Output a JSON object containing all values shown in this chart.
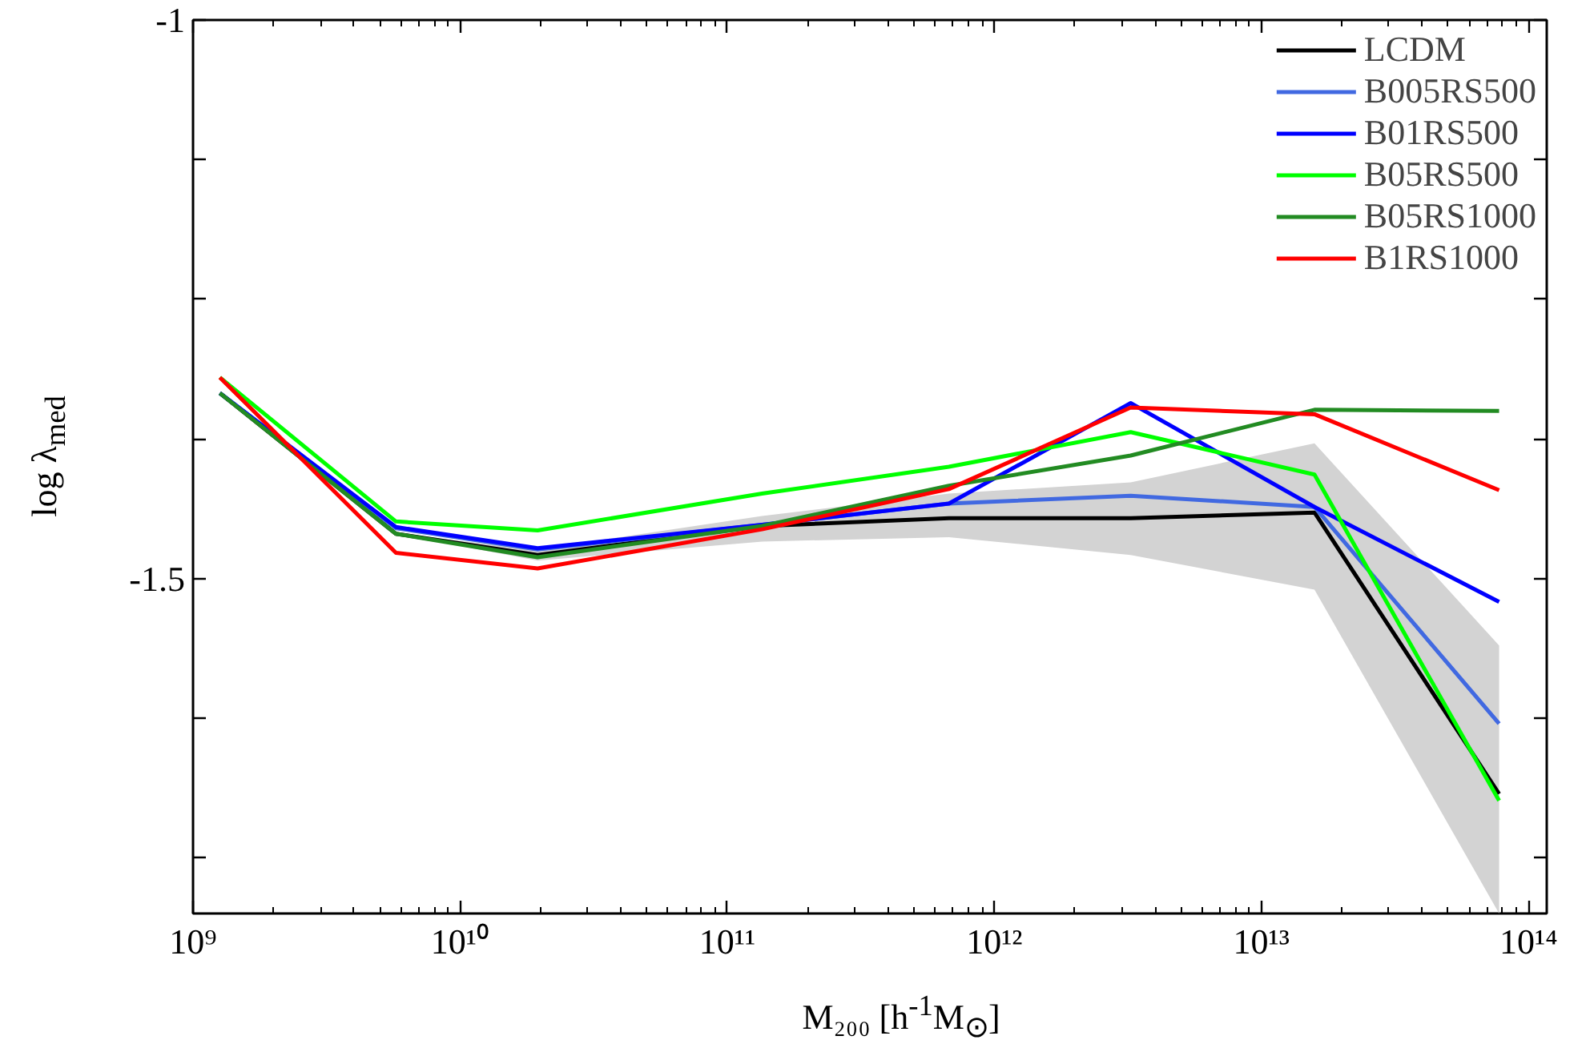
{
  "chart_data": {
    "type": "line",
    "xlabel": "M₂₀₀ [h$^{-1}$M$_{⊙}$]",
    "ylabel": "log λ$_{med}$",
    "x": [
      1260000000.0,
      5750000000.0,
      19500000000.0,
      135000000000.0,
      676000000000.0,
      3240000000000.0,
      15800000000000.0,
      77600000000000.0
    ],
    "log": "x",
    "xlim": [
      1000000000.0,
      117000000000000.0
    ],
    "xticks": [
      {
        "value": 1000000000.0,
        "label": "10⁹"
      },
      {
        "value": 10000000000.0,
        "label": "10¹⁰"
      },
      {
        "value": 100000000000.0,
        "label": "10¹¹"
      },
      {
        "value": 1000000000000.0,
        "label": "10¹²"
      },
      {
        "value": 10000000000000.0,
        "label": "10¹³"
      },
      {
        "value": 100000000000000.0,
        "label": "10¹⁴"
      }
    ],
    "ylim": [
      -1.8,
      -1
    ],
    "yticks": [
      -1,
      {
        "value": -1.125,
        "label": null
      },
      {
        "value": -1.25,
        "label": null
      },
      {
        "value": -1.375,
        "label": null
      },
      -1.5,
      {
        "value": -1.625,
        "label": null
      },
      {
        "value": -1.75,
        "label": null
      }
    ],
    "grid": false,
    "legend": "top right",
    "series": [
      {
        "name": "LCDM",
        "color": "#000000",
        "values": [
          -1.334,
          -1.46,
          -1.479,
          -1.453,
          -1.446,
          -1.446,
          -1.441,
          -1.693
        ],
        "lower": [
          -1.334,
          -1.46,
          -1.484,
          -1.467,
          -1.463,
          -1.479,
          -1.51,
          -1.8
        ],
        "upper": [
          -1.334,
          -1.46,
          -1.474,
          -1.444,
          -1.424,
          -1.414,
          -1.379,
          -1.56
        ]
      },
      {
        "name": "B005RS500",
        "color": "#4169e1",
        "values": [
          -1.334,
          -1.455,
          -1.474,
          -1.452,
          -1.433,
          -1.426,
          -1.436,
          -1.63
        ]
      },
      {
        "name": "B01RS500",
        "color": "#0000ff",
        "values": [
          -1.334,
          -1.454,
          -1.473,
          -1.452,
          -1.433,
          -1.343,
          -1.436,
          -1.521
        ]
      },
      {
        "name": "B05RS500",
        "color": "#00ff00",
        "values": [
          -1.32,
          -1.449,
          -1.457,
          -1.424,
          -1.4,
          -1.369,
          -1.407,
          -1.699
        ]
      },
      {
        "name": "B05RS1000",
        "color": "#228b22",
        "values": [
          -1.334,
          -1.46,
          -1.481,
          -1.453,
          -1.417,
          -1.39,
          -1.349,
          -1.35
        ]
      },
      {
        "name": "B1RS1000",
        "color": "#ff0000",
        "values": [
          -1.32,
          -1.477,
          -1.491,
          -1.456,
          -1.42,
          -1.347,
          -1.353,
          -1.421
        ]
      }
    ]
  }
}
